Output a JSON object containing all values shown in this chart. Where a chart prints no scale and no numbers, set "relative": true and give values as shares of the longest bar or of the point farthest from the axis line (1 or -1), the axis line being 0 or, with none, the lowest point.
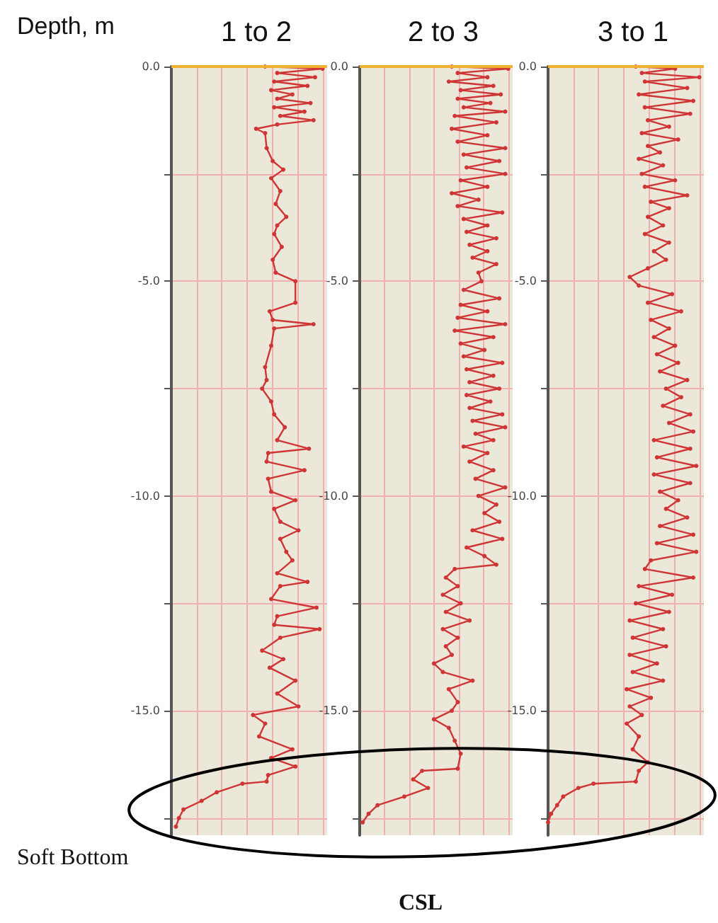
{
  "chart_data": [
    {
      "type": "line",
      "title": "1 to 2",
      "ylabel": "Depth, m",
      "orientation": "horizontal",
      "relative": true,
      "color": "#d03535",
      "marker": "circle",
      "grid": true,
      "tick_labels": "y",
      "ylim": [
        -17.9,
        0
      ],
      "yticks": [
        {
          "value": 0,
          "label": "0.0"
        },
        {
          "value": -2.5,
          "label": null
        },
        {
          "value": -5,
          "label": "-5.0"
        },
        {
          "value": -7.5,
          "label": null
        },
        {
          "value": -10,
          "label": "-10.0"
        },
        {
          "value": -12.5,
          "label": null
        },
        {
          "value": -15,
          "label": "-15.0"
        },
        {
          "value": -17.5,
          "label": null
        }
      ],
      "ref_lines": [
        {
          "axis": "y",
          "value": 0,
          "color": "#f0b030"
        }
      ],
      "annotations": [
        "Soft Bottom"
      ],
      "x": [
        0,
        -0.05,
        -0.15,
        -0.25,
        -0.35,
        -0.45,
        -0.55,
        -0.65,
        -0.75,
        -0.85,
        -0.95,
        -1.05,
        -1.15,
        -1.25,
        -1.35,
        -1.45,
        -1.55,
        -1.9,
        -2.2,
        -2.4,
        -2.6,
        -2.9,
        -3.2,
        -3.5,
        -3.7,
        -3.9,
        -4.2,
        -4.5,
        -4.8,
        -5.0,
        -5.5,
        -5.7,
        -5.9,
        -6.0,
        -6.1,
        -6.5,
        -7.0,
        -7.3,
        -7.5,
        -7.8,
        -8.1,
        -8.4,
        -8.7,
        -8.9,
        -9.0,
        -9.2,
        -9.4,
        -9.6,
        -9.9,
        -10.1,
        -10.3,
        -10.6,
        -10.8,
        -11.0,
        -11.3,
        -11.5,
        -11.8,
        -12.0,
        -12.1,
        -12.4,
        -12.6,
        -12.8,
        -13.0,
        -13.1,
        -13.3,
        -13.6,
        -13.8,
        -14.0,
        -14.3,
        -14.6,
        -14.9,
        -15.1,
        -15.3,
        -15.6,
        -15.9,
        -16.1,
        -16.3,
        -16.5,
        -16.65,
        -16.7,
        -16.9,
        -17.1,
        -17.3,
        -17.5,
        -17.7
      ],
      "values": [
        0.62,
        1.0,
        0.7,
        0.95,
        0.68,
        0.9,
        0.66,
        0.8,
        0.7,
        0.92,
        0.68,
        0.88,
        0.72,
        0.94,
        0.7,
        0.56,
        0.62,
        0.63,
        0.67,
        0.74,
        0.66,
        0.72,
        0.69,
        0.76,
        0.7,
        0.68,
        0.73,
        0.67,
        0.69,
        0.82,
        0.82,
        0.65,
        0.67,
        0.94,
        0.68,
        0.66,
        0.62,
        0.63,
        0.6,
        0.66,
        0.68,
        0.75,
        0.7,
        0.91,
        0.64,
        0.63,
        0.88,
        0.64,
        0.66,
        0.82,
        0.68,
        0.72,
        0.84,
        0.72,
        0.76,
        0.8,
        0.7,
        0.9,
        0.72,
        0.66,
        0.96,
        0.7,
        0.68,
        0.98,
        0.72,
        0.6,
        0.74,
        0.65,
        0.82,
        0.7,
        0.84,
        0.54,
        0.62,
        0.58,
        0.8,
        0.66,
        0.82,
        0.64,
        0.63,
        0.47,
        0.3,
        0.2,
        0.08,
        0.05,
        0.03
      ]
    },
    {
      "type": "line",
      "title": "2 to 3",
      "orientation": "horizontal",
      "relative": true,
      "color": "#d03535",
      "marker": "circle",
      "grid": true,
      "tick_labels": "y",
      "ylim": [
        -17.9,
        0
      ],
      "yticks": [
        {
          "value": 0,
          "label": "0.0"
        },
        {
          "value": -2.5,
          "label": null
        },
        {
          "value": -5,
          "label": "-5.0"
        },
        {
          "value": -7.5,
          "label": null
        },
        {
          "value": -10,
          "label": "-10.0"
        },
        {
          "value": -12.5,
          "label": null
        },
        {
          "value": -15,
          "label": "-15.0"
        },
        {
          "value": -17.5,
          "label": null
        }
      ],
      "ref_lines": [
        {
          "axis": "y",
          "value": 0,
          "color": "#f0b030"
        }
      ],
      "annotations": [
        "CSL"
      ],
      "x": [
        0,
        -0.05,
        -0.15,
        -0.25,
        -0.35,
        -0.45,
        -0.55,
        -0.65,
        -0.75,
        -0.85,
        -0.95,
        -1.05,
        -1.15,
        -1.3,
        -1.45,
        -1.6,
        -1.75,
        -1.9,
        -2.05,
        -2.2,
        -2.35,
        -2.5,
        -2.65,
        -2.8,
        -2.95,
        -3.1,
        -3.25,
        -3.4,
        -3.55,
        -3.7,
        -3.85,
        -4.0,
        -4.15,
        -4.3,
        -4.45,
        -4.6,
        -4.8,
        -5.0,
        -5.2,
        -5.4,
        -5.55,
        -5.7,
        -5.85,
        -6.0,
        -6.15,
        -6.3,
        -6.45,
        -6.6,
        -6.75,
        -6.9,
        -7.05,
        -7.2,
        -7.35,
        -7.5,
        -7.65,
        -7.8,
        -7.95,
        -8.1,
        -8.25,
        -8.4,
        -8.55,
        -8.7,
        -8.85,
        -9.0,
        -9.2,
        -9.4,
        -9.6,
        -9.8,
        -10.0,
        -10.2,
        -10.4,
        -10.6,
        -10.8,
        -11.0,
        -11.2,
        -11.4,
        -11.6,
        -11.7,
        -11.9,
        -12.1,
        -12.3,
        -12.5,
        -12.7,
        -12.9,
        -13.1,
        -13.3,
        -13.5,
        -13.7,
        -13.9,
        -14.1,
        -14.3,
        -14.5,
        -14.8,
        -15.0,
        -15.2,
        -15.4,
        -15.7,
        -16.0,
        -16.35,
        -16.4,
        -16.6,
        -16.8,
        -17.0,
        -17.2,
        -17.4,
        -17.6
      ],
      "values": [
        0.62,
        1.0,
        0.66,
        0.86,
        0.6,
        0.9,
        0.68,
        0.95,
        0.66,
        0.88,
        0.7,
        0.98,
        0.64,
        0.92,
        0.62,
        0.86,
        0.66,
        0.98,
        0.7,
        0.94,
        0.72,
        0.98,
        0.68,
        0.86,
        0.62,
        0.8,
        0.66,
        0.96,
        0.7,
        0.86,
        0.72,
        0.92,
        0.74,
        0.86,
        0.76,
        0.92,
        0.8,
        0.82,
        0.7,
        0.94,
        0.68,
        0.86,
        0.66,
        0.98,
        0.64,
        0.9,
        0.68,
        0.84,
        0.7,
        0.96,
        0.72,
        0.9,
        0.74,
        0.94,
        0.72,
        0.88,
        0.74,
        0.96,
        0.76,
        0.98,
        0.78,
        0.9,
        0.7,
        0.86,
        0.74,
        0.9,
        0.78,
        0.98,
        0.8,
        0.92,
        0.84,
        0.94,
        0.76,
        0.96,
        0.72,
        0.84,
        0.92,
        0.64,
        0.58,
        0.66,
        0.56,
        0.68,
        0.58,
        0.74,
        0.56,
        0.66,
        0.58,
        0.62,
        0.5,
        0.56,
        0.76,
        0.6,
        0.66,
        0.62,
        0.5,
        0.6,
        0.64,
        0.68,
        0.66,
        0.42,
        0.36,
        0.46,
        0.3,
        0.12,
        0.06,
        0.02
      ]
    },
    {
      "type": "line",
      "title": "3 to 1",
      "orientation": "horizontal",
      "relative": true,
      "color": "#d03535",
      "marker": "circle",
      "grid": true,
      "tick_labels": "y",
      "ylim": [
        -17.9,
        0
      ],
      "yticks": [
        {
          "value": 0,
          "label": "0.0"
        },
        {
          "value": -2.5,
          "label": null
        },
        {
          "value": -5,
          "label": "-5.0"
        },
        {
          "value": -7.5,
          "label": null
        },
        {
          "value": -10,
          "label": "-10.0"
        },
        {
          "value": -12.5,
          "label": null
        },
        {
          "value": -15,
          "label": "-15.0"
        },
        {
          "value": -17.5,
          "label": null
        }
      ],
      "ref_lines": [
        {
          "axis": "y",
          "value": 0,
          "color": "#f0b030"
        }
      ],
      "x": [
        0,
        -0.05,
        -0.15,
        -0.25,
        -0.35,
        -0.5,
        -0.65,
        -0.8,
        -0.95,
        -1.1,
        -1.25,
        -1.4,
        -1.55,
        -1.7,
        -1.85,
        -2.0,
        -2.15,
        -2.3,
        -2.5,
        -2.65,
        -2.8,
        -3.0,
        -3.15,
        -3.3,
        -3.5,
        -3.7,
        -3.9,
        -4.1,
        -4.3,
        -4.5,
        -4.7,
        -4.9,
        -5.1,
        -5.3,
        -5.5,
        -5.7,
        -5.9,
        -6.1,
        -6.3,
        -6.5,
        -6.7,
        -6.9,
        -7.1,
        -7.3,
        -7.5,
        -7.7,
        -7.9,
        -8.1,
        -8.3,
        -8.5,
        -8.7,
        -8.9,
        -9.1,
        -9.3,
        -9.5,
        -9.7,
        -9.9,
        -10.1,
        -10.3,
        -10.5,
        -10.7,
        -10.9,
        -11.1,
        -11.3,
        -11.5,
        -11.7,
        -11.9,
        -12.1,
        -12.3,
        -12.5,
        -12.7,
        -12.9,
        -13.1,
        -13.3,
        -13.5,
        -13.7,
        -13.9,
        -14.1,
        -14.3,
        -14.5,
        -14.7,
        -14.9,
        -15.1,
        -15.3,
        -15.6,
        -15.9,
        -16.2,
        -16.4,
        -16.65,
        -16.7,
        -16.8,
        -17.0,
        -17.2,
        -17.4,
        -17.6
      ],
      "values": [
        0.58,
        0.84,
        0.62,
        1.0,
        0.64,
        0.92,
        0.6,
        0.96,
        0.64,
        0.94,
        0.66,
        0.8,
        0.62,
        0.86,
        0.66,
        0.74,
        0.6,
        0.76,
        0.62,
        0.84,
        0.64,
        0.92,
        0.68,
        0.8,
        0.66,
        0.76,
        0.64,
        0.8,
        0.7,
        0.78,
        0.66,
        0.54,
        0.6,
        0.82,
        0.66,
        0.88,
        0.68,
        0.8,
        0.7,
        0.84,
        0.72,
        0.86,
        0.74,
        0.92,
        0.78,
        0.88,
        0.76,
        0.94,
        0.8,
        0.96,
        0.7,
        0.94,
        0.72,
        0.98,
        0.7,
        0.94,
        0.74,
        0.86,
        0.78,
        0.92,
        0.74,
        0.96,
        0.72,
        0.98,
        0.68,
        0.64,
        0.96,
        0.6,
        0.82,
        0.58,
        0.8,
        0.54,
        0.76,
        0.56,
        0.78,
        0.54,
        0.72,
        0.56,
        0.76,
        0.52,
        0.68,
        0.54,
        0.62,
        0.52,
        0.6,
        0.56,
        0.66,
        0.6,
        0.58,
        0.3,
        0.2,
        0.1,
        0.06,
        0.02,
        0
      ]
    }
  ]
}
